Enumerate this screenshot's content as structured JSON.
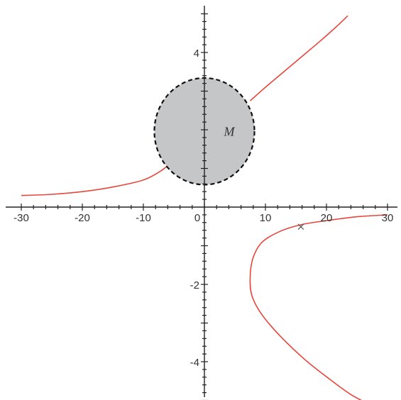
{
  "chart_data": {
    "type": "line",
    "title": "",
    "xlabel": "",
    "ylabel": "",
    "xlim": [
      -31,
      31
    ],
    "ylim": [
      -5.2,
      5.2
    ],
    "x_ticks": [
      -30,
      -20,
      -10,
      0,
      10,
      20,
      30
    ],
    "x_tick_labels": [
      "-30",
      "-20",
      "-10",
      "0",
      "10",
      "20",
      "30"
    ],
    "y_ticks": [
      -4,
      -2,
      4
    ],
    "y_tick_labels": [
      "-4",
      "-2",
      "4"
    ],
    "grid": false,
    "series": [
      {
        "name": "",
        "color": "#e8463c",
        "points": [
          [
            -30,
            0.3
          ],
          [
            -25,
            0.33
          ],
          [
            -20,
            0.4
          ],
          [
            -15,
            0.52
          ],
          [
            -10,
            0.7
          ],
          [
            -7,
            0.95
          ],
          [
            -5.5,
            1.15
          ]
        ]
      },
      {
        "name": "",
        "color": "#e8463c",
        "points": [
          [
            7.5,
            2.75
          ],
          [
            10,
            3.1
          ],
          [
            13,
            3.5
          ],
          [
            16,
            3.9
          ],
          [
            19,
            4.3
          ],
          [
            21.5,
            4.65
          ],
          [
            23.5,
            4.95
          ]
        ]
      },
      {
        "name": "",
        "color": "#e8463c",
        "points": [
          [
            30,
            -0.2
          ],
          [
            25,
            -0.25
          ],
          [
            20,
            -0.35
          ],
          [
            16,
            -0.45
          ],
          [
            12.5,
            -0.62
          ],
          [
            9.5,
            -0.9
          ],
          [
            8,
            -1.3
          ],
          [
            7.5,
            -1.8
          ],
          [
            7.8,
            -2.3
          ],
          [
            9.5,
            -2.8
          ],
          [
            12.5,
            -3.35
          ],
          [
            16.5,
            -3.95
          ],
          [
            20.5,
            -4.45
          ],
          [
            24,
            -4.85
          ],
          [
            27,
            -5.1
          ]
        ]
      }
    ],
    "region": {
      "label": "M",
      "center": [
        0,
        1.96
      ],
      "radius_x": 8.2,
      "radius_y": 1.38,
      "fill": "#c5c6c8",
      "border": "dashed",
      "border_color": "#111111"
    },
    "marker": {
      "symbol": "×",
      "x": 15.8,
      "y": -0.5,
      "color": "#555555"
    }
  }
}
